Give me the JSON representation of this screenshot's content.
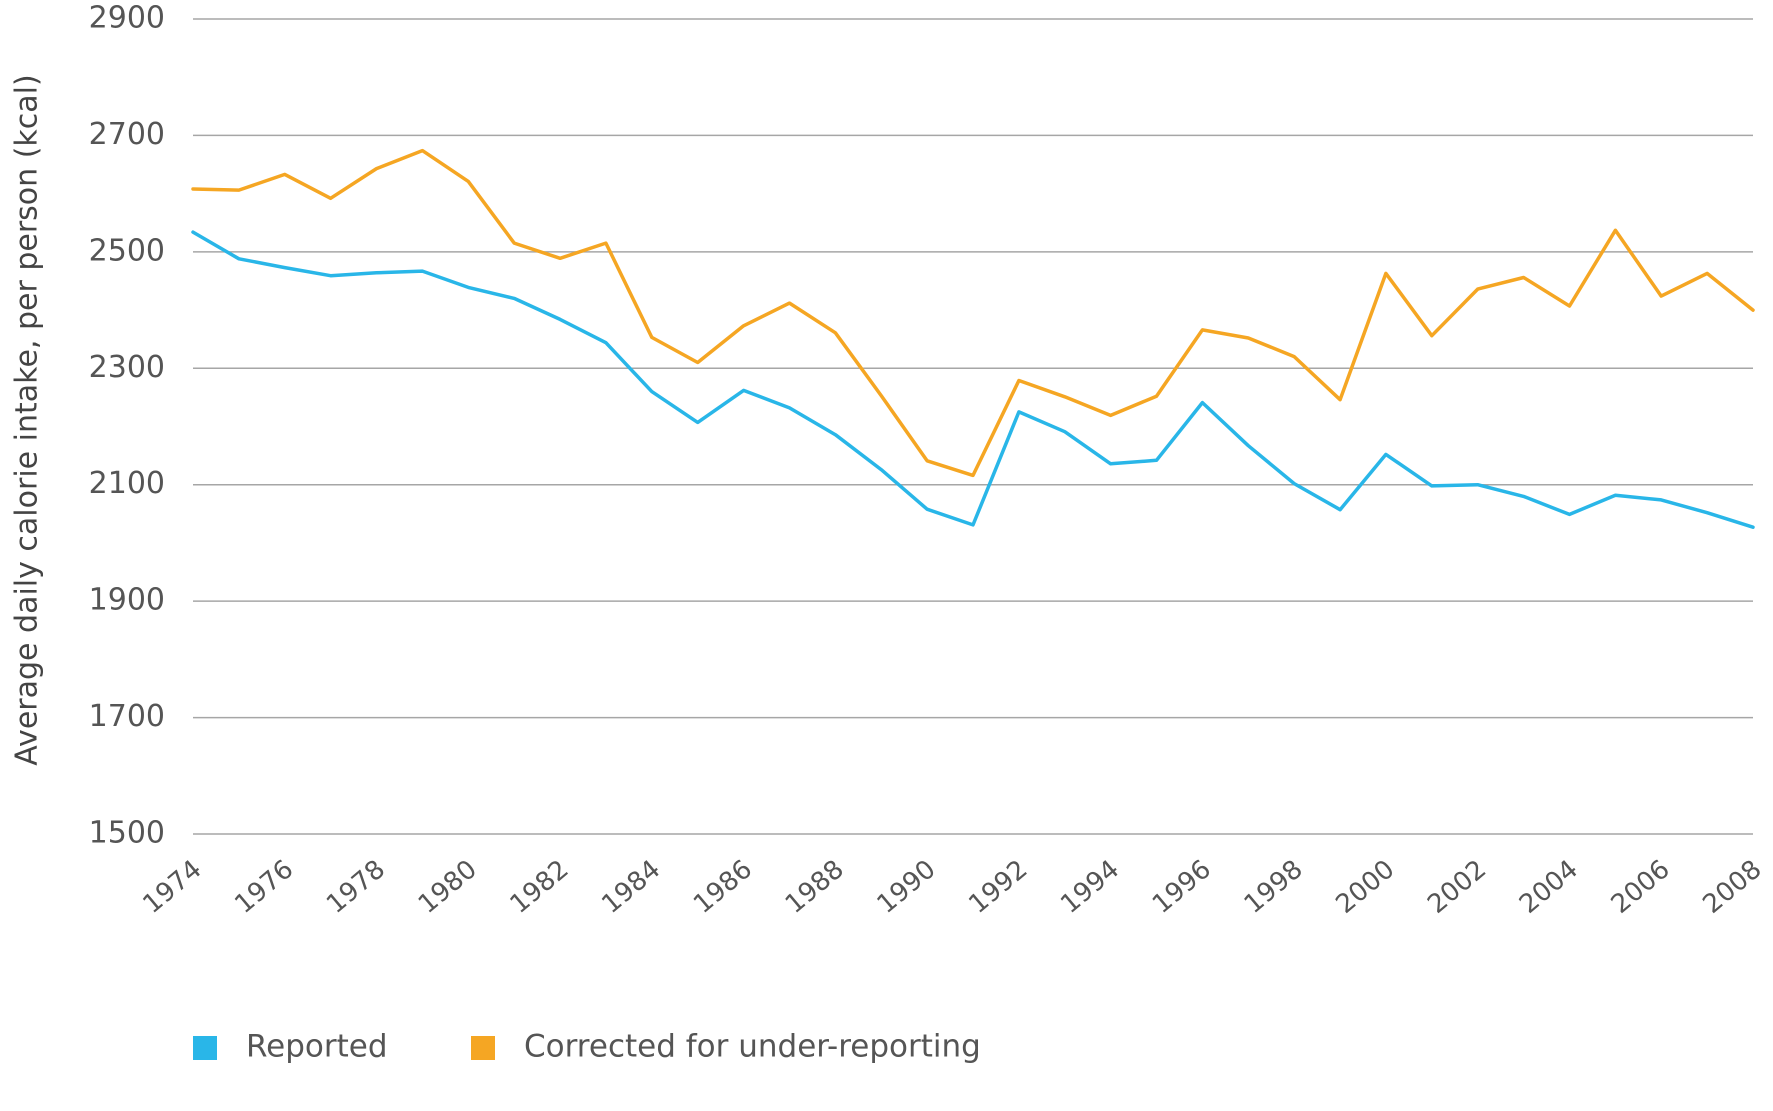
{
  "chart_data": {
    "type": "line",
    "title": "",
    "xlabel": "",
    "ylabel": "Average daily calorie intake, per person (kcal)",
    "x": [
      1974,
      1975,
      1976,
      1977,
      1978,
      1979,
      1980,
      1981,
      1982,
      1983,
      1984,
      1985,
      1986,
      1987,
      1988,
      1989,
      1990,
      1991,
      1992,
      1993,
      1994,
      1995,
      1996,
      1997,
      1998,
      1999,
      2000,
      2001,
      2002,
      2003,
      2004,
      2005,
      2006,
      2007,
      2008
    ],
    "xtick_labels": [
      "1974",
      "1976",
      "1978",
      "1980",
      "1982",
      "1984",
      "1986",
      "1988",
      "1990",
      "1992",
      "1994",
      "1996",
      "1998",
      "2000",
      "2002",
      "2004",
      "2006",
      "2008"
    ],
    "ylim": [
      1500,
      2900
    ],
    "ytick_labels": [
      "1500",
      "1700",
      "1900",
      "2100",
      "2300",
      "2500",
      "2700",
      "2900"
    ],
    "grid": true,
    "legend_position": "bottom-left",
    "series": [
      {
        "name": "Reported",
        "color": "#29b6e8",
        "values": [
          2534,
          2488,
          2473,
          2459,
          2464,
          2467,
          2439,
          2420,
          2384,
          2344,
          2260,
          2207,
          2262,
          2232,
          2186,
          2126,
          2058,
          2031,
          2225,
          2191,
          2136,
          2142,
          2241,
          2167,
          2102,
          2057,
          2152,
          2098,
          2100,
          2080,
          2049,
          2082,
          2074,
          2052,
          2027
        ]
      },
      {
        "name": "Corrected for under-reporting",
        "color": "#f5a623",
        "values": [
          2608,
          2606,
          2633,
          2592,
          2643,
          2674,
          2621,
          2515,
          2489,
          2515,
          2353,
          2310,
          2373,
          2412,
          2361,
          2253,
          2141,
          2116,
          2279,
          2251,
          2219,
          2252,
          2366,
          2352,
          2320,
          2246,
          2463,
          2356,
          2436,
          2456,
          2407,
          2537,
          2424,
          2463,
          2400
        ]
      }
    ]
  }
}
